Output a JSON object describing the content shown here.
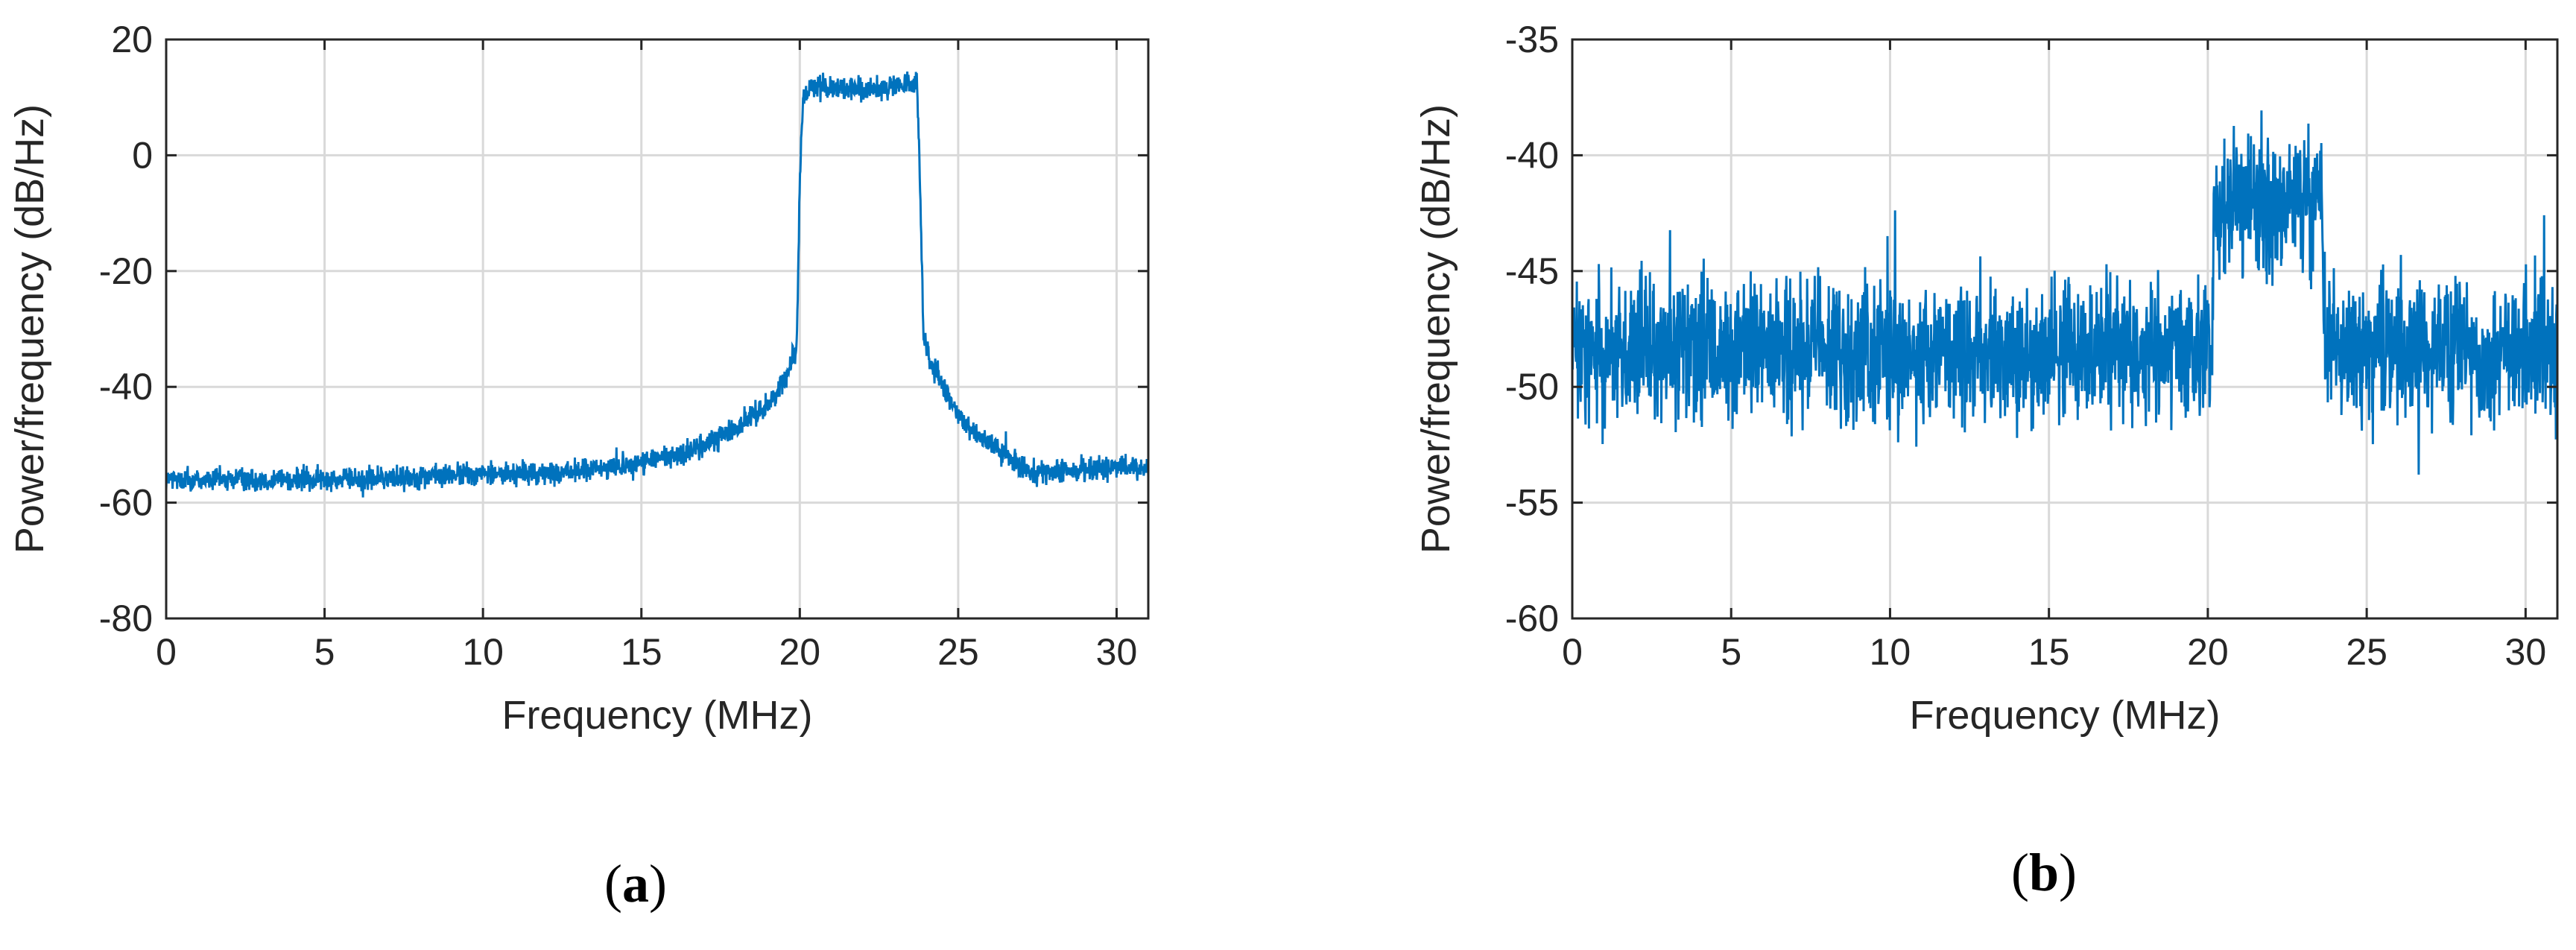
{
  "chart_data": [
    {
      "type": "line",
      "panel_label": "a",
      "xlabel": "Frequency (MHz)",
      "ylabel": "Power/frequency (dB/Hz)",
      "xlim": [
        0,
        31
      ],
      "ylim": [
        -80,
        20
      ],
      "xticks": [
        0,
        5,
        10,
        15,
        20,
        25,
        30
      ],
      "yticks": [
        -80,
        -60,
        -40,
        -20,
        0,
        20
      ],
      "grid": true,
      "color": "#0072BD",
      "series": [
        {
          "x": [
            0,
            2,
            4,
            6,
            8,
            10,
            12,
            14,
            15,
            16,
            17,
            18,
            19,
            19.5,
            19.9,
            20.0,
            20.1,
            20.5,
            21,
            22,
            23,
            23.5,
            23.7,
            23.8,
            23.9,
            24.1,
            24.5,
            25,
            26,
            27,
            28,
            29,
            30,
            31
          ],
          "y": [
            -56,
            -56,
            -56,
            -56,
            -55.5,
            -55,
            -55,
            -54,
            -53,
            -52,
            -50,
            -47,
            -43,
            -39,
            -33,
            -5,
            10,
            12,
            12,
            11,
            12,
            12,
            12,
            -5,
            -31,
            -35,
            -40,
            -45,
            -50,
            -54,
            -55,
            -54,
            -54,
            -54
          ],
          "noise_amplitude_db": 3
        }
      ]
    },
    {
      "type": "line",
      "panel_label": "b",
      "xlabel": "Frequency (MHz)",
      "ylabel": "Power/frequency (dB/Hz)",
      "xlim": [
        0,
        31
      ],
      "ylim": [
        -60,
        -35
      ],
      "xticks": [
        0,
        5,
        10,
        15,
        20,
        25,
        30
      ],
      "yticks": [
        -60,
        -55,
        -50,
        -45,
        -40,
        -35
      ],
      "grid": true,
      "color": "#0072BD",
      "series": [
        {
          "x": [
            0,
            20.1,
            20.2,
            23.6,
            23.7,
            31
          ],
          "y": [
            -48.5,
            -48.5,
            -42,
            -42,
            -48.5,
            -48.5
          ],
          "noise_amplitude_db": 4.5
        }
      ]
    }
  ]
}
